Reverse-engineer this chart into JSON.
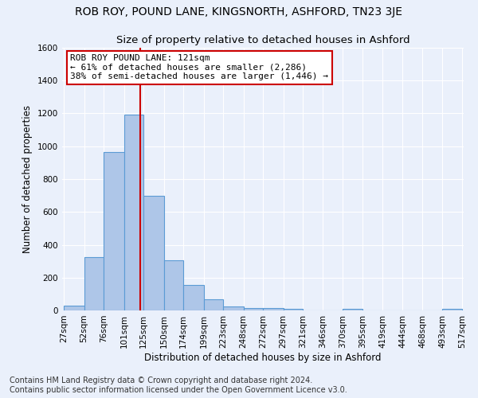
{
  "title": "ROB ROY, POUND LANE, KINGSNORTH, ASHFORD, TN23 3JE",
  "subtitle": "Size of property relative to detached houses in Ashford",
  "xlabel": "Distribution of detached houses by size in Ashford",
  "ylabel": "Number of detached properties",
  "bin_edges": [
    27,
    52,
    76,
    101,
    125,
    150,
    174,
    199,
    223,
    248,
    272,
    297,
    321,
    346,
    370,
    395,
    419,
    444,
    468,
    493,
    517
  ],
  "bar_heights": [
    30,
    325,
    965,
    1195,
    700,
    305,
    155,
    70,
    25,
    15,
    15,
    10,
    0,
    0,
    10,
    0,
    0,
    0,
    0,
    10
  ],
  "bar_color": "#aec6e8",
  "bar_edge_color": "#5b9bd5",
  "vline_x": 121,
  "vline_color": "#cc0000",
  "annotation_line1": "ROB ROY POUND LANE: 121sqm",
  "annotation_line2": "← 61% of detached houses are smaller (2,286)",
  "annotation_line3": "38% of semi-detached houses are larger (1,446) →",
  "annotation_box_color": "#cc0000",
  "annotation_box_facecolor": "white",
  "ylim": [
    0,
    1600
  ],
  "yticks": [
    0,
    200,
    400,
    600,
    800,
    1000,
    1200,
    1400,
    1600
  ],
  "footnote1": "Contains HM Land Registry data © Crown copyright and database right 2024.",
  "footnote2": "Contains public sector information licensed under the Open Government Licence v3.0.",
  "background_color": "#eaf0fb",
  "plot_bg_color": "#eaf0fb",
  "grid_color": "white",
  "title_fontsize": 10,
  "subtitle_fontsize": 9.5,
  "axis_label_fontsize": 8.5,
  "tick_fontsize": 7.5,
  "annotation_fontsize": 8,
  "footnote_fontsize": 7
}
